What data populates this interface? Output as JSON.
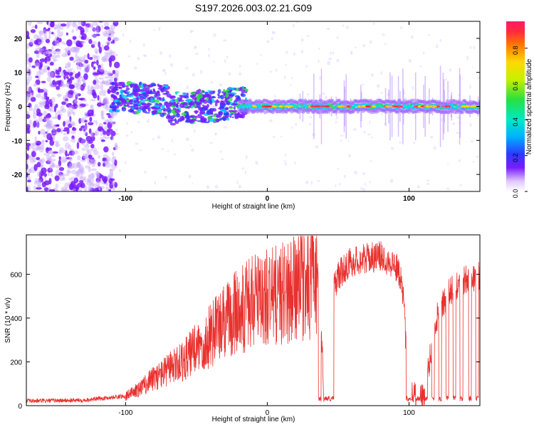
{
  "figure": {
    "title": "S197.2026.003.02.21.G09"
  },
  "chart_data": [
    {
      "type": "heatmap",
      "xlabel": "Height of straight line (km)",
      "ylabel": "Frequency (Hz)",
      "xlim": [
        -170,
        150
      ],
      "ylim": [
        -25,
        25
      ],
      "xticks": [
        -100,
        0,
        100
      ],
      "yticks": [
        -20,
        -10,
        0,
        10,
        20
      ],
      "xtick_labels": [
        "-100",
        "0",
        "100"
      ],
      "ytick_labels": [
        "-20",
        "-10",
        "0",
        "10",
        "20"
      ],
      "colorbar": {
        "label": "Normalized spectral amplitude",
        "range": [
          0,
          0.95
        ],
        "ticks": [
          0.0,
          0.2,
          0.4,
          0.6,
          0.8
        ],
        "tick_labels": [
          "0.0",
          "0.2",
          "0.4",
          "0.6",
          "0.8"
        ]
      },
      "description_points": {
        "noise_region_km": [
          -170,
          -110
        ],
        "dispersed_region_km": [
          -110,
          -25
        ],
        "coherent_line_freq_hz": 0
      }
    },
    {
      "type": "line",
      "xlabel": "Height of straight line (km)",
      "ylabel": "SNR (10 * v/v)",
      "xlim": [
        -170,
        150
      ],
      "ylim": [
        0,
        780
      ],
      "xticks": [
        -100,
        0,
        100
      ],
      "yticks": [
        0,
        200,
        400,
        600
      ],
      "xtick_labels": [
        "-100",
        "0",
        "100"
      ],
      "ytick_labels": [
        "0",
        "200",
        "400",
        "600"
      ],
      "color": "#e8312e",
      "series": [
        {
          "name": "SNR",
          "x": [
            -170,
            -150,
            -130,
            -115,
            -100,
            -90,
            -80,
            -70,
            -60,
            -50,
            -40,
            -30,
            -20,
            -10,
            0,
            10,
            20,
            30,
            36,
            40,
            45,
            50,
            58,
            70,
            80,
            90,
            95,
            100,
            110,
            115,
            120,
            130,
            140,
            150
          ],
          "y": [
            22,
            24,
            26,
            35,
            45,
            80,
            130,
            170,
            210,
            270,
            330,
            400,
            450,
            490,
            510,
            530,
            555,
            580,
            590,
            80,
            520,
            600,
            660,
            680,
            690,
            650,
            590,
            70,
            40,
            240,
            420,
            540,
            580,
            600
          ]
        }
      ],
      "dropouts_km": [
        [
          36,
          38
        ],
        [
          40,
          44
        ],
        [
          44,
          47
        ],
        [
          98,
          102
        ],
        [
          105,
          108
        ],
        [
          111,
          113
        ],
        [
          116,
          118
        ],
        [
          121,
          123
        ],
        [
          126,
          128
        ],
        [
          131,
          133
        ],
        [
          136,
          138
        ],
        [
          142,
          144
        ],
        [
          147,
          149
        ]
      ]
    }
  ]
}
